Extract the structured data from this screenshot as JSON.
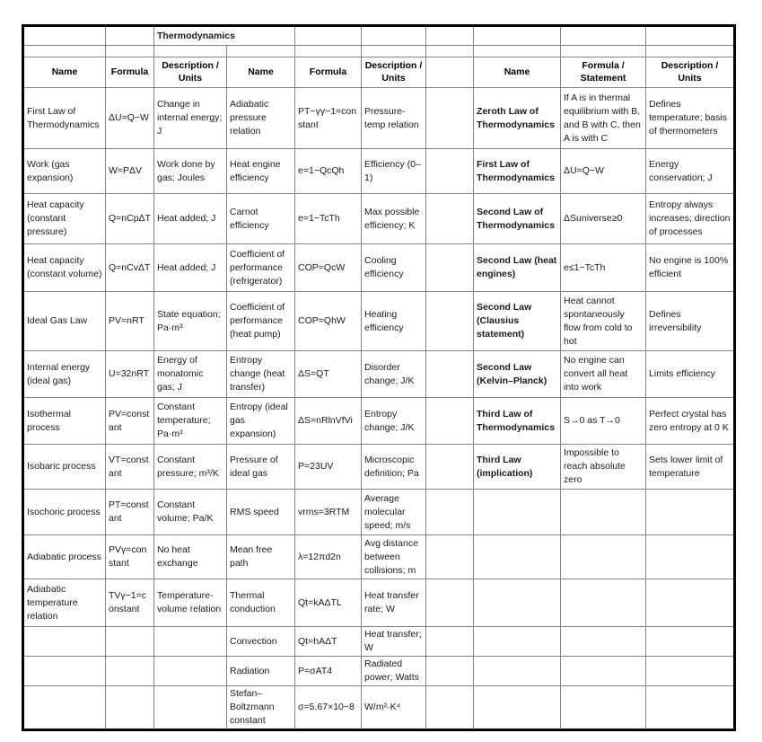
{
  "title": "Thermodynamics",
  "colors": {
    "background": "#ffffff",
    "outer_border": "#000000",
    "gridline": "#848484",
    "text": "#1a1a1a"
  },
  "table": {
    "headers": [
      "Name",
      "Formula",
      "Description / Units",
      "Name",
      "Formula",
      "Description / Units",
      "",
      "Name",
      "Formula / Statement",
      "Description / Units"
    ],
    "rows": [
      [
        "First Law of Thermodynamics",
        "ΔU=Q−W",
        "Change in internal energy; J",
        "Adiabatic pressure relation",
        "PT−γγ−1=constant",
        "Pressure-temp relation",
        "",
        "Zeroth Law of Thermodynamics",
        "If A is in thermal equilibrium with B, and B with C, then A is with C",
        "Defines temperature; basis of thermometers"
      ],
      [
        "Work (gas expansion)",
        "W=PΔV",
        "Work done by gas; Joules",
        "Heat engine efficiency",
        "e=1−QcQh",
        "Efficiency (0–1)",
        "",
        "First Law of Thermodynamics",
        "ΔU=Q−W",
        "Energy conservation; J"
      ],
      [
        "Heat capacity (constant pressure)",
        "Q=nCpΔT",
        "Heat added; J",
        "Carnot efficiency",
        "e=1−TcTh",
        "Max possible efficiency; K",
        "",
        "Second Law of Thermodynamics",
        "ΔSuniverse≥0",
        "Entropy always increases; direction of processes"
      ],
      [
        "Heat capacity (constant volume)",
        "Q=nCvΔT",
        "Heat added; J",
        "Coefficient of performance (refrigerator)",
        "COP=QcW",
        "Cooling efficiency",
        "",
        "Second Law (heat engines)",
        "e≤1−TcTh",
        "No engine is 100% efficient"
      ],
      [
        "Ideal Gas Law",
        "PV=nRT",
        "State equation; Pa·m³",
        "Coefficient of performance (heat pump)",
        "COP=QhW",
        "Heating efficiency",
        "",
        "Second Law (Clausius statement)",
        "Heat cannot spontaneously flow from cold to hot",
        "Defines irreversibility"
      ],
      [
        "Internal energy (ideal gas)",
        "U=32nRT",
        "Energy of monatomic gas; J",
        "Entropy change (heat transfer)",
        "ΔS=QT",
        "Disorder change; J/K",
        "",
        "Second Law (Kelvin–Planck)",
        "No engine can convert all heat into work",
        "Limits efficiency"
      ],
      [
        "Isothermal process",
        "PV=constant",
        "Constant temperature; Pa·m³",
        "Entropy (ideal gas expansion)",
        "ΔS=nRlnVfVi",
        "Entropy change; J/K",
        "",
        "Third Law of Thermodynamics",
        "S→0 as T→0",
        "Perfect crystal has zero entropy at 0 K"
      ],
      [
        "Isobaric process",
        "VT=constant",
        "Constant pressure; m³/K",
        "Pressure of ideal gas",
        "P=23UV",
        "Microscopic definition; Pa",
        "",
        "Third Law (implication)",
        "Impossible to reach absolute zero",
        "Sets lower limit of temperature"
      ],
      [
        "Isochoric process",
        "PT=constant",
        "Constant volume; Pa/K",
        "RMS speed",
        "vrms=3RTM",
        "Average molecular speed; m/s",
        "",
        "",
        "",
        ""
      ],
      [
        "Adiabatic process",
        "PVγ=constant",
        "No heat exchange",
        "Mean free path",
        "λ=12πd2n",
        "Avg distance between collisions; m",
        "",
        "",
        "",
        ""
      ],
      [
        "Adiabatic temperature relation",
        "TVγ−1=constant",
        "Temperature-volume relation",
        "Thermal conduction",
        "Qt=kAΔTL",
        "Heat transfer rate; W",
        "",
        "",
        "",
        ""
      ],
      [
        "",
        "",
        "",
        "Convection",
        "Qt=hAΔT",
        "Heat transfer; W",
        "",
        "",
        "",
        ""
      ],
      [
        "",
        "",
        "",
        "Radiation",
        "P=σAT4",
        "Radiated power; Watts",
        "",
        "",
        "",
        ""
      ],
      [
        "",
        "",
        "",
        "Stefan–Boltzmann constant",
        "σ=5.67×10−8",
        "W/m²·K⁴",
        "",
        "",
        "",
        ""
      ]
    ]
  }
}
